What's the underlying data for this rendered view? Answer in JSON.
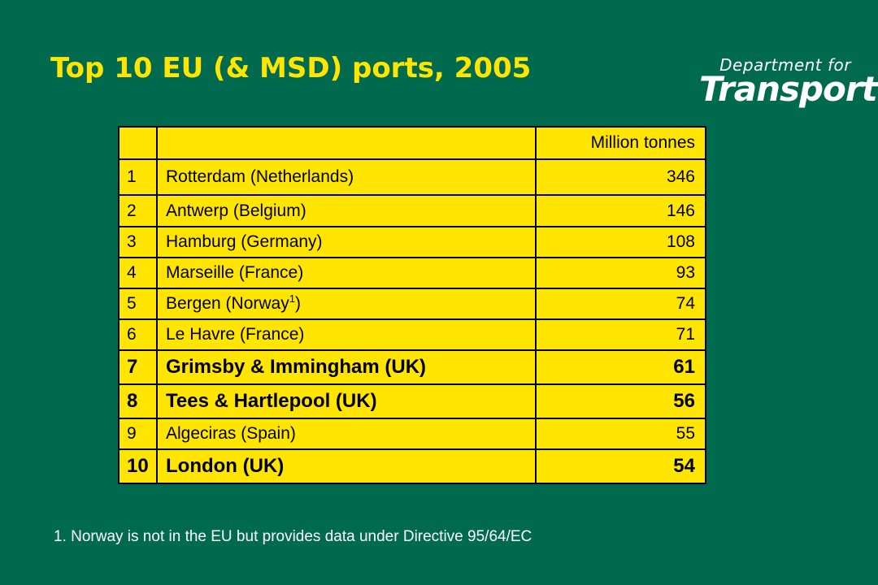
{
  "title": "Top 10 EU (& MSD) ports, 2005",
  "logo": {
    "line1": "Department for",
    "line2": "Transport"
  },
  "table": {
    "header": {
      "rank": "",
      "port": "",
      "value": "Million tonnes"
    },
    "rows": [
      {
        "rank": "1",
        "port": "Rotterdam (Netherlands)",
        "port_note": "",
        "port_suffix": "",
        "value": "346",
        "bold": false
      },
      {
        "rank": "2",
        "port": "Antwerp (Belgium)",
        "port_note": "",
        "port_suffix": "",
        "value": "146",
        "bold": false
      },
      {
        "rank": "3",
        "port": "Hamburg (Germany)",
        "port_note": "",
        "port_suffix": "",
        "value": "108",
        "bold": false
      },
      {
        "rank": "4",
        "port": "Marseille (France)",
        "port_note": "",
        "port_suffix": "",
        "value": "93",
        "bold": false
      },
      {
        "rank": "5",
        "port": "Bergen (Norway",
        "port_note": "1",
        "port_suffix": ")",
        "value": "74",
        "bold": false
      },
      {
        "rank": "6",
        "port": "Le Havre (France)",
        "port_note": "",
        "port_suffix": "",
        "value": "71",
        "bold": false
      },
      {
        "rank": "7",
        "port": "Grimsby & Immingham (UK)",
        "port_note": "",
        "port_suffix": "",
        "value": "61",
        "bold": true
      },
      {
        "rank": "8",
        "port": "Tees & Hartlepool (UK)",
        "port_note": "",
        "port_suffix": "",
        "value": "56",
        "bold": true
      },
      {
        "rank": "9",
        "port": "Algeciras (Spain)",
        "port_note": "",
        "port_suffix": "",
        "value": "55",
        "bold": false
      },
      {
        "rank": "10",
        "port": "London (UK)",
        "port_note": "",
        "port_suffix": "",
        "value": "54",
        "bold": true
      }
    ]
  },
  "footnote": "1. Norway is not in the EU but provides data under Directive 95/64/EC",
  "colors": {
    "background": "#006a4e",
    "title": "#ffe500",
    "table_fill": "#ffe500",
    "text": "#000000",
    "footnote": "#ffffff"
  }
}
